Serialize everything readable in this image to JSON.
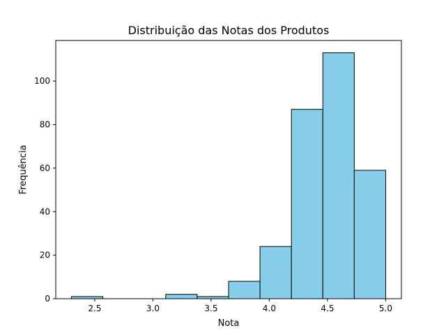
{
  "chart_data": {
    "type": "bar",
    "subtype": "histogram",
    "title": "Distribuição das Notas dos Produtos",
    "xlabel": "Nota",
    "ylabel": "Frequência",
    "bin_edges": [
      2.3,
      2.57,
      2.84,
      3.11,
      3.38,
      3.65,
      3.92,
      4.19,
      4.46,
      4.73,
      5.0
    ],
    "values": [
      1,
      0,
      0,
      2,
      1,
      8,
      24,
      87,
      113,
      59
    ],
    "xlim": [
      2.165,
      5.135
    ],
    "ylim": [
      0,
      118.65
    ],
    "xticks": [
      {
        "value": 2.5,
        "label": "2.5"
      },
      {
        "value": 3.0,
        "label": "3.0"
      },
      {
        "value": 3.5,
        "label": "3.5"
      },
      {
        "value": 4.0,
        "label": "4.0"
      },
      {
        "value": 4.5,
        "label": "4.5"
      },
      {
        "value": 5.0,
        "label": "5.0"
      }
    ],
    "yticks": [
      {
        "value": 0,
        "label": "0"
      },
      {
        "value": 20,
        "label": "20"
      },
      {
        "value": 40,
        "label": "40"
      },
      {
        "value": 60,
        "label": "60"
      },
      {
        "value": 80,
        "label": "80"
      },
      {
        "value": 100,
        "label": "100"
      }
    ],
    "bar_color": "#87CEEB",
    "edge_color": "#000000",
    "grid": false,
    "legend": "none"
  }
}
